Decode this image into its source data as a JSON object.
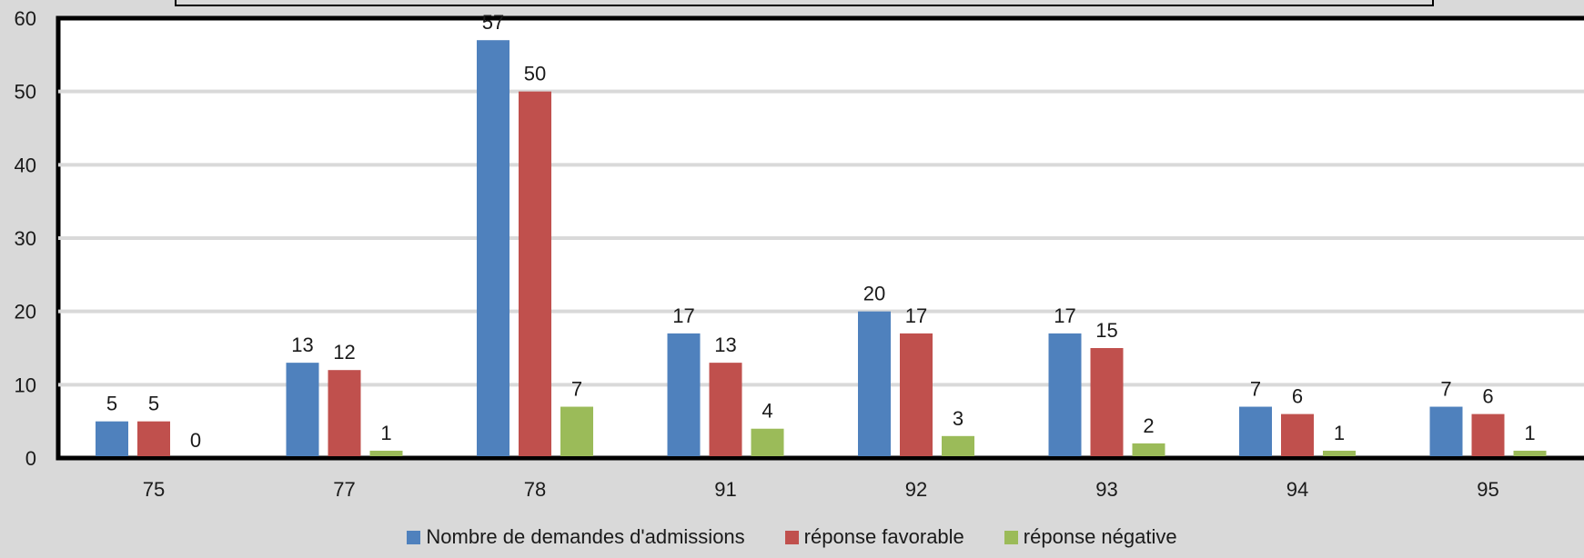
{
  "chart_data": {
    "type": "bar",
    "title": "",
    "xlabel": "",
    "ylabel": "",
    "categories": [
      "75",
      "77",
      "78",
      "91",
      "92",
      "93",
      "94",
      "95"
    ],
    "ylim": [
      0,
      60
    ],
    "yticks": [
      0,
      10,
      20,
      30,
      40,
      50,
      60
    ],
    "grid": true,
    "legend_position": "bottom",
    "series": [
      {
        "name": "Nombre de demandes d'admissions",
        "color": "#4f81bd",
        "values": [
          5,
          13,
          57,
          17,
          20,
          17,
          7,
          7
        ]
      },
      {
        "name": "réponse favorable",
        "color": "#c0504d",
        "values": [
          5,
          12,
          50,
          13,
          17,
          15,
          6,
          6
        ]
      },
      {
        "name": "réponse négative",
        "color": "#9bbb59",
        "values": [
          0,
          1,
          7,
          4,
          3,
          2,
          1,
          1
        ]
      }
    ]
  },
  "legend": {
    "items": [
      {
        "label": "Nombre de demandes d'admissions",
        "color": "#4f81bd"
      },
      {
        "label": "réponse favorable",
        "color": "#c0504d"
      },
      {
        "label": "réponse négative",
        "color": "#9bbb59"
      }
    ]
  }
}
